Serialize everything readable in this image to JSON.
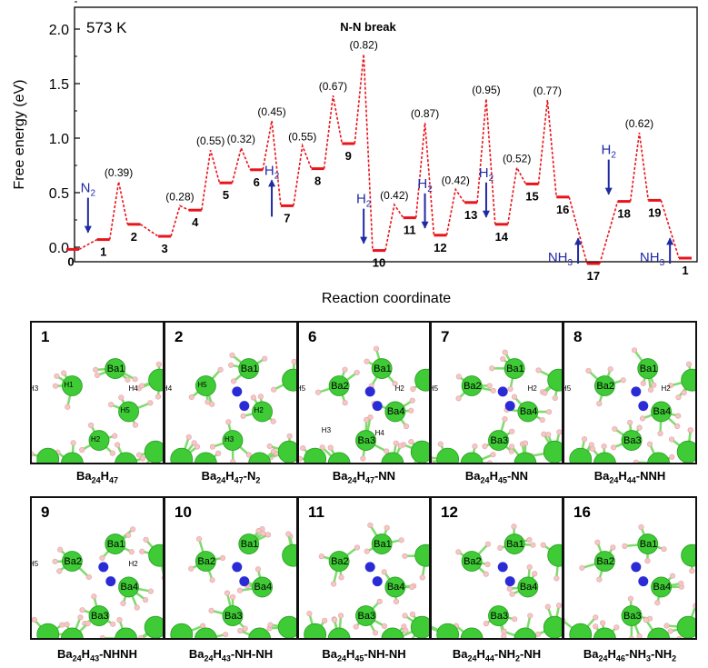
{
  "chart_data": {
    "type": "line",
    "temperature_label": "573 K",
    "annotation_title": "N-N break",
    "ylabel": "Free energy (eV)",
    "xlabel": "Reaction coordinate",
    "ylim": [
      -0.1,
      2.1
    ],
    "yticks": [
      "0.0",
      "0.5",
      "1.0",
      "1.5",
      "2.0"
    ],
    "level_color": "#e8141b",
    "arrow_color": "#1f2aa3",
    "states": [
      {
        "label": "0",
        "energy": -0.02
      },
      {
        "label": "1",
        "energy": 0.07
      },
      {
        "label": "2",
        "energy": 0.21
      },
      {
        "label": "3",
        "energy": 0.1
      },
      {
        "label": "4",
        "energy": 0.34
      },
      {
        "label": "5",
        "energy": 0.59
      },
      {
        "label": "6",
        "energy": 0.71
      },
      {
        "label": "7",
        "energy": 0.38
      },
      {
        "label": "8",
        "energy": 0.72
      },
      {
        "label": "9",
        "energy": 0.95
      },
      {
        "label": "10",
        "energy": -0.03
      },
      {
        "label": "11",
        "energy": 0.27
      },
      {
        "label": "12",
        "energy": 0.11
      },
      {
        "label": "13",
        "energy": 0.41
      },
      {
        "label": "14",
        "energy": 0.21
      },
      {
        "label": "15",
        "energy": 0.58
      },
      {
        "label": "16",
        "energy": 0.46
      },
      {
        "label": "17",
        "energy": -0.15
      },
      {
        "label": "18",
        "energy": 0.42
      },
      {
        "label": "19",
        "energy": 0.43
      },
      {
        "label": "1",
        "energy": -0.1
      }
    ],
    "barriers": [
      {
        "after": 1,
        "peak": 0.6,
        "label": "(0.39)"
      },
      {
        "after": 3,
        "peak": 0.38,
        "label": "(0.28)"
      },
      {
        "after": 4,
        "peak": 0.89,
        "label": "(0.55)"
      },
      {
        "after": 5,
        "peak": 0.91,
        "label": "(0.32)"
      },
      {
        "after": 6,
        "peak": 1.16,
        "label": "(0.45)"
      },
      {
        "after": 7,
        "peak": 0.93,
        "label": "(0.55)"
      },
      {
        "after": 8,
        "peak": 1.39,
        "label": "(0.67)"
      },
      {
        "after": 9,
        "peak": 1.77,
        "label": "(0.82)"
      },
      {
        "after": 10,
        "peak": 0.39,
        "label": "(0.42)"
      },
      {
        "after": 11,
        "peak": 1.14,
        "label": "(0.87)"
      },
      {
        "after": 12,
        "peak": 0.53,
        "label": "(0.42)"
      },
      {
        "after": 13,
        "peak": 1.36,
        "label": "(0.95)"
      },
      {
        "after": 14,
        "peak": 0.73,
        "label": "(0.52)"
      },
      {
        "after": 15,
        "peak": 1.35,
        "label": "(0.77)"
      },
      {
        "after": 18,
        "peak": 1.05,
        "label": "(0.62)"
      }
    ],
    "arrows": [
      {
        "between": [
          0,
          1
        ],
        "dir": "down",
        "label": "N",
        "sub": "2"
      },
      {
        "between": [
          6,
          7
        ],
        "dir": "up",
        "label": "H",
        "sub": "2"
      },
      {
        "between": [
          9,
          10
        ],
        "dir": "down",
        "label": "H",
        "sub": "2"
      },
      {
        "between": [
          11,
          12
        ],
        "dir": "down",
        "label": "H",
        "sub": "2"
      },
      {
        "between": [
          13,
          14
        ],
        "dir": "down",
        "label": "H",
        "sub": "2"
      },
      {
        "between": [
          16,
          17
        ],
        "dir": "up",
        "label": "NH",
        "sub": "3"
      },
      {
        "between": [
          17,
          18
        ],
        "dir": "down",
        "label": "H",
        "sub": "2"
      },
      {
        "between": [
          19,
          20
        ],
        "dir": "up",
        "label": "NH",
        "sub": "3"
      }
    ]
  },
  "panels_row1": [
    {
      "num": "1",
      "formula": [
        [
          "Ba",
          "24"
        ],
        [
          "H",
          "47"
        ]
      ],
      "atom_labels": [
        "Ba1",
        "H1",
        "H5",
        "H2",
        "H3",
        "H4"
      ]
    },
    {
      "num": "2",
      "formula": [
        [
          "Ba",
          "24"
        ],
        [
          "H",
          "47"
        ],
        [
          "-N",
          "2"
        ]
      ],
      "atom_labels": [
        "Ba1",
        "H5",
        "H2",
        "H3",
        "H4"
      ]
    },
    {
      "num": "6",
      "formula": [
        [
          "Ba",
          "24"
        ],
        [
          "H",
          "47"
        ],
        [
          "-NN",
          ""
        ]
      ],
      "atom_labels": [
        "Ba1",
        "Ba2",
        "Ba4",
        "Ba3",
        "H5",
        "H2",
        "H3",
        "H4"
      ]
    },
    {
      "num": "7",
      "formula": [
        [
          "Ba",
          "24"
        ],
        [
          "H",
          "45"
        ],
        [
          "-NN",
          ""
        ]
      ],
      "atom_labels": [
        "Ba1",
        "Ba2",
        "Ba4",
        "Ba3",
        "H5",
        "H2"
      ]
    },
    {
      "num": "8",
      "formula": [
        [
          "Ba",
          "24"
        ],
        [
          "H",
          "44"
        ],
        [
          "-NNH",
          ""
        ]
      ],
      "atom_labels": [
        "Ba1",
        "Ba2",
        "Ba4",
        "Ba3",
        "H5",
        "H2"
      ]
    }
  ],
  "panels_row2": [
    {
      "num": "9",
      "formula": [
        [
          "Ba",
          "24"
        ],
        [
          "H",
          "43"
        ],
        [
          "-NHNH",
          ""
        ]
      ],
      "atom_labels": [
        "Ba1",
        "Ba2",
        "Ba4",
        "Ba3",
        "H5",
        "H2"
      ]
    },
    {
      "num": "10",
      "formula": [
        [
          "Ba",
          "24"
        ],
        [
          "H",
          "43"
        ],
        [
          "-NH-NH",
          ""
        ]
      ],
      "atom_labels": [
        "Ba1",
        "Ba2",
        "Ba4",
        "Ba3"
      ]
    },
    {
      "num": "11",
      "formula": [
        [
          "Ba",
          "24"
        ],
        [
          "H",
          "45"
        ],
        [
          "-NH-NH",
          ""
        ]
      ],
      "atom_labels": [
        "Ba1",
        "Ba2",
        "Ba4",
        "Ba3"
      ]
    },
    {
      "num": "12",
      "formula": [
        [
          "Ba",
          "24"
        ],
        [
          "H",
          "44"
        ],
        [
          "-NH",
          "2"
        ],
        [
          "-NH",
          ""
        ]
      ],
      "atom_labels": [
        "Ba1",
        "Ba2",
        "Ba4",
        "Ba3"
      ]
    },
    {
      "num": "16",
      "formula": [
        [
          "Ba",
          "24"
        ],
        [
          "H",
          "46"
        ],
        [
          "-NH",
          "3"
        ],
        [
          "-NH",
          "2"
        ]
      ],
      "atom_labels": [
        "Ba1",
        "Ba2",
        "Ba4",
        "Ba3"
      ]
    }
  ]
}
